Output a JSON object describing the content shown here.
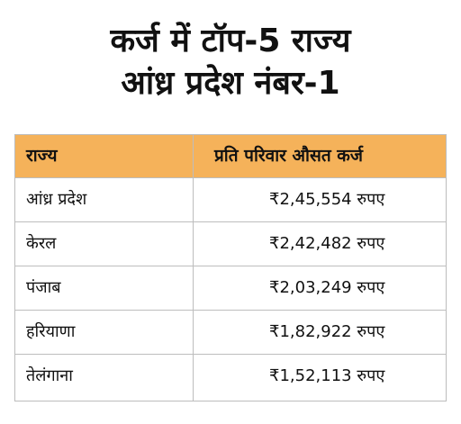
{
  "title": {
    "line1": "कर्ज में टॉप-5 राज्य",
    "line2": "आंध्र प्रदेश नंबर-1"
  },
  "table": {
    "headers": [
      "राज्य",
      "प्रति परिवार औसत कर्ज"
    ],
    "rows": [
      {
        "state": "आंध्र प्रदेश",
        "amount": "₹2,45,554 रुपए"
      },
      {
        "state": "केरल",
        "amount": "₹2,42,482 रुपए"
      },
      {
        "state": "पंजाब",
        "amount": "₹2,03,249 रुपए"
      },
      {
        "state": "हरियाणा",
        "amount": "₹1,82,922 रुपए"
      },
      {
        "state": "तेलंगाना",
        "amount": "₹1,52,113 रुपए"
      }
    ]
  },
  "colors": {
    "header_background": "#f5b25a",
    "border": "#bdbdbd",
    "text": "#111111",
    "background": "#ffffff"
  }
}
